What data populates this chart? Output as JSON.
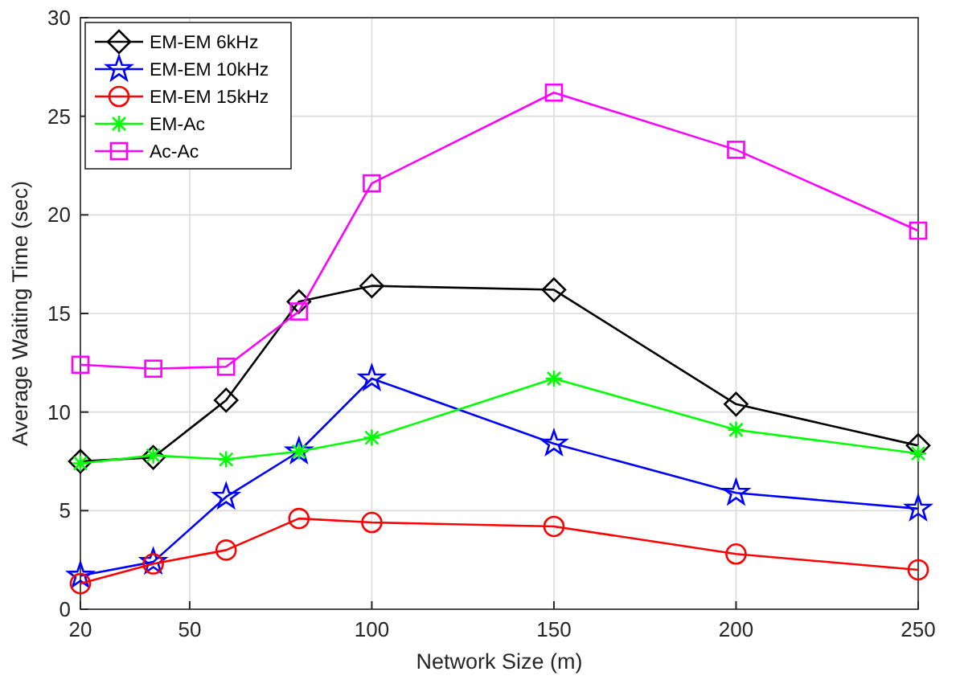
{
  "chart_data": {
    "type": "line",
    "xlabel": "Network Size (m)",
    "ylabel": "Average Waiting Time (sec)",
    "x": [
      20,
      40,
      60,
      80,
      100,
      150,
      200,
      250
    ],
    "xlim": [
      20,
      250
    ],
    "xticks": [
      20,
      50,
      100,
      150,
      200,
      250
    ],
    "ylim": [
      0,
      30
    ],
    "yticks": [
      0,
      5,
      10,
      15,
      20,
      25,
      30
    ],
    "grid": true,
    "legend": "top left",
    "series": [
      {
        "name": "EM-EM 6kHz",
        "color": "#000000",
        "marker": "diamond",
        "values": [
          7.5,
          7.7,
          10.6,
          15.6,
          16.4,
          16.2,
          10.4,
          8.3
        ]
      },
      {
        "name": "EM-EM 10kHz",
        "color": "#0000ff",
        "marker": "star",
        "values": [
          1.7,
          2.4,
          5.7,
          8.0,
          11.7,
          8.4,
          5.9,
          5.1
        ]
      },
      {
        "name": "EM-EM 15kHz",
        "color": "#ff0000",
        "marker": "circle",
        "values": [
          1.3,
          2.3,
          3.0,
          4.6,
          4.4,
          4.2,
          2.8,
          2.0
        ]
      },
      {
        "name": "EM-Ac",
        "color": "#00ff00",
        "marker": "cross",
        "values": [
          7.4,
          7.8,
          7.6,
          8.0,
          8.7,
          11.7,
          9.1,
          7.9
        ]
      },
      {
        "name": "Ac-Ac",
        "color": "#ff00ff",
        "marker": "square",
        "values": [
          12.4,
          12.2,
          12.3,
          15.1,
          21.6,
          26.2,
          23.3,
          19.2
        ]
      }
    ]
  }
}
